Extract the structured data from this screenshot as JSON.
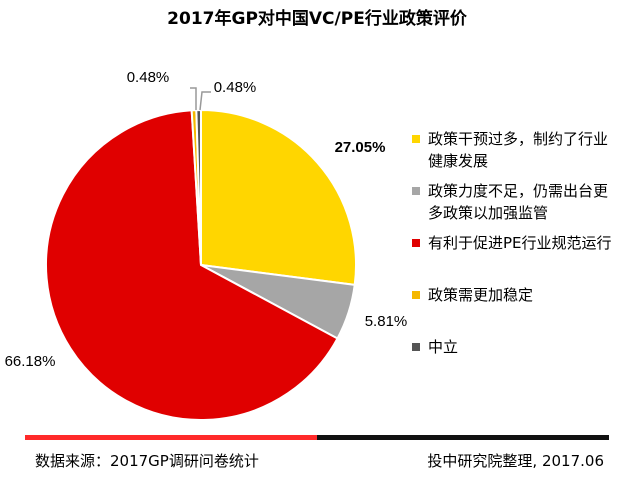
{
  "chart_data": {
    "type": "pie",
    "title": "2017年GP对中国VC/PE行业政策评价",
    "series": [
      {
        "name": "政策干预过多，制约了行业健康发展",
        "value": 27.05,
        "label": "27.05%",
        "color": "#ffd600"
      },
      {
        "name": "政策力度不足，仍需出台更多政策以加强监管",
        "value": 5.81,
        "label": "5.81%",
        "color": "#a6a6a6"
      },
      {
        "name": "有利于促进PE行业规范运行",
        "value": 66.18,
        "label": "66.18%",
        "color": "#e00000"
      },
      {
        "name": "政策需更加稳定",
        "value": 0.48,
        "label": "0.48%",
        "color": "#f5b800"
      },
      {
        "name": "中立",
        "value": 0.48,
        "label": "0.48%",
        "color": "#555555"
      }
    ],
    "legend_position": "right"
  },
  "footer": {
    "source": "数据来源：2017GP调研问卷统计",
    "credit": "投中研究院整理, 2017.06"
  }
}
